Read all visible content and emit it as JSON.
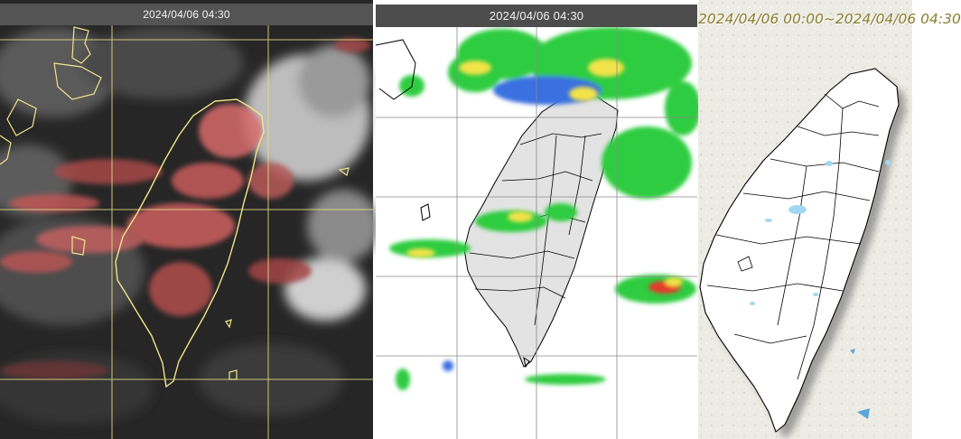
{
  "panels": {
    "satellite": {
      "title": "2024/04/06 04:30"
    },
    "radar": {
      "title": "2024/04/06 04:30"
    },
    "rainfall": {
      "title": "2024/04/06 00:00~2024/04/06 04:30"
    }
  },
  "colors": {
    "satellite_bg": "#2a2a2a",
    "satellite_cloud_warm": "#d86a6a",
    "satellite_coastline": "#f0e58a",
    "radar_echo_green": "#2ecc40",
    "radar_echo_blue": "#3b6fe0",
    "radar_echo_yellow": "#f2e34a",
    "radar_echo_red": "#e53b2c",
    "land_gray": "#e3e3e3",
    "rain_light_blue": "#9fd8f0"
  },
  "icons": {
    "satellite": "satellite-cloud-image",
    "radar": "radar-echo-map",
    "rainfall": "rainfall-accumulation-map"
  }
}
